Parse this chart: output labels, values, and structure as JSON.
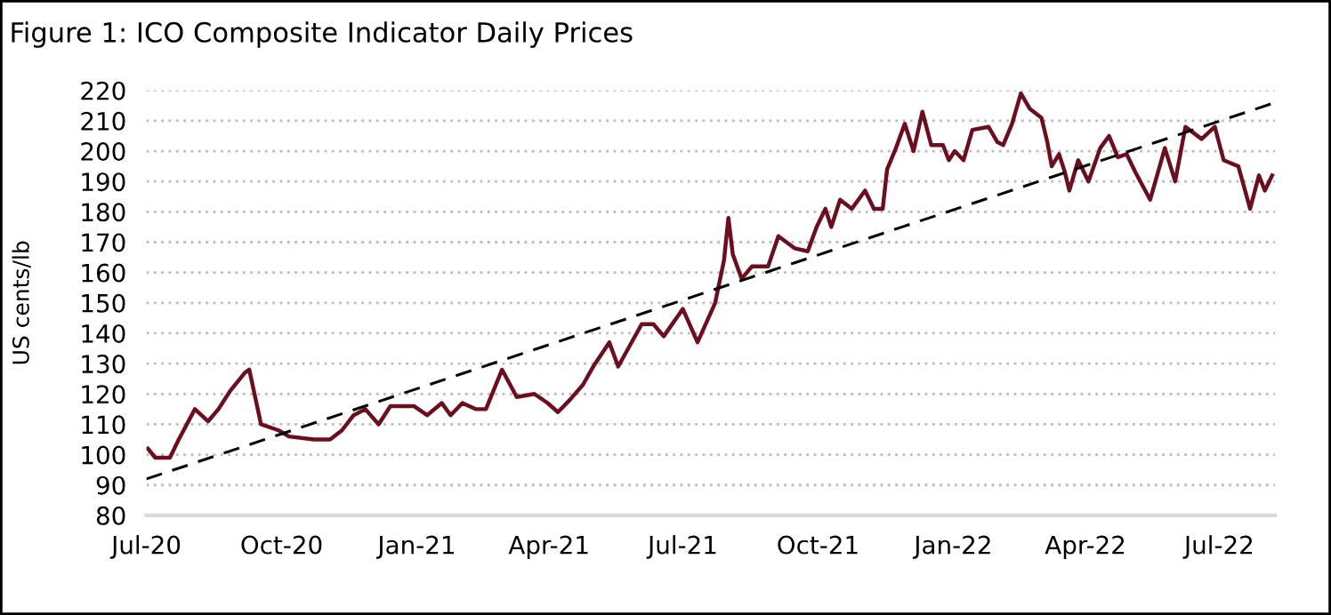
{
  "chart_data": {
    "type": "line",
    "title": "Figure 1: ICO Composite Indicator Daily Prices",
    "ylabel": "US cents/lb",
    "ylim": [
      80,
      220
    ],
    "yticks": [
      80,
      90,
      100,
      110,
      120,
      130,
      140,
      150,
      160,
      170,
      180,
      190,
      200,
      210,
      220
    ],
    "xlim": [
      "2020-07-01",
      "2022-08-08"
    ],
    "xticks": [
      {
        "value": "2020-07-01",
        "label": "Jul-20"
      },
      {
        "value": "2020-10-01",
        "label": "Oct-20"
      },
      {
        "value": "2021-01-01",
        "label": "Jan-21"
      },
      {
        "value": "2021-04-01",
        "label": "Apr-21"
      },
      {
        "value": "2021-07-01",
        "label": "Jul-21"
      },
      {
        "value": "2021-10-01",
        "label": "Oct-21"
      },
      {
        "value": "2022-01-01",
        "label": "Jan-22"
      },
      {
        "value": "2022-04-01",
        "label": "Apr-22"
      },
      {
        "value": "2022-07-01",
        "label": "Jul-22"
      }
    ],
    "grid": "y",
    "legend": false,
    "series": [
      {
        "color": "#6b0f1f",
        "line_style": "solid",
        "x": [
          "2020-07-02",
          "2020-07-07",
          "2020-07-17",
          "2020-07-23",
          "2020-08-03",
          "2020-08-12",
          "2020-08-19",
          "2020-08-27",
          "2020-09-06",
          "2020-09-09",
          "2020-09-17",
          "2020-09-29",
          "2020-10-06",
          "2020-10-23",
          "2020-11-03",
          "2020-11-11",
          "2020-11-19",
          "2020-11-27",
          "2020-12-06",
          "2020-12-14",
          "2020-12-30",
          "2021-01-08",
          "2021-01-18",
          "2021-01-24",
          "2021-02-01",
          "2021-02-10",
          "2021-02-17",
          "2021-02-28",
          "2021-03-10",
          "2021-03-22",
          "2021-03-31",
          "2021-04-07",
          "2021-04-15",
          "2021-04-24",
          "2021-05-01",
          "2021-05-12",
          "2021-05-18",
          "2021-06-03",
          "2021-06-11",
          "2021-06-18",
          "2021-07-01",
          "2021-07-11",
          "2021-07-23",
          "2021-07-29",
          "2021-08-01",
          "2021-08-04",
          "2021-08-10",
          "2021-08-17",
          "2021-08-28",
          "2021-09-04",
          "2021-09-15",
          "2021-09-24",
          "2021-09-30",
          "2021-10-06",
          "2021-10-10",
          "2021-10-16",
          "2021-10-24",
          "2021-11-02",
          "2021-11-08",
          "2021-11-14",
          "2021-11-17",
          "2021-11-23",
          "2021-11-29",
          "2021-12-05",
          "2021-12-11",
          "2021-12-17",
          "2021-12-25",
          "2021-12-29",
          "2022-01-02",
          "2022-01-08",
          "2022-01-14",
          "2022-01-25",
          "2022-01-31",
          "2022-02-04",
          "2022-02-10",
          "2022-02-16",
          "2022-02-22",
          "2022-03-02",
          "2022-03-06",
          "2022-03-09",
          "2022-03-14",
          "2022-03-18",
          "2022-03-21",
          "2022-03-27",
          "2022-04-03",
          "2022-04-11",
          "2022-04-17",
          "2022-04-23",
          "2022-04-29",
          "2022-05-05",
          "2022-05-15",
          "2022-05-25",
          "2022-06-01",
          "2022-06-08",
          "2022-06-19",
          "2022-06-28",
          "2022-07-04",
          "2022-07-14",
          "2022-07-22",
          "2022-07-28",
          "2022-08-01",
          "2022-08-06"
        ],
        "values": [
          102,
          99,
          99,
          105,
          115,
          111,
          115,
          121,
          127,
          128,
          110,
          108,
          106,
          105,
          105,
          108,
          113,
          115,
          110,
          116,
          116,
          113,
          117,
          113,
          117,
          115,
          115,
          128,
          119,
          120,
          117,
          114,
          118,
          123,
          129,
          137,
          129,
          143,
          143,
          139,
          148,
          137,
          150,
          164,
          178,
          166,
          158,
          162,
          162,
          172,
          168,
          167,
          175,
          181,
          175,
          184,
          181,
          187,
          181,
          181,
          194,
          201,
          209,
          200,
          213,
          202,
          202,
          197,
          200,
          197,
          207,
          208,
          203,
          202,
          209,
          219,
          214,
          211,
          203,
          195,
          199,
          193,
          187,
          197,
          190,
          201,
          205,
          198,
          199,
          193,
          184,
          201,
          190,
          208,
          204,
          208,
          197,
          195,
          181,
          192,
          187,
          192
        ]
      },
      {
        "color": "#000000",
        "line_style": "dashed",
        "x": [
          "2020-07-01",
          "2022-08-08"
        ],
        "values": [
          92,
          216
        ]
      }
    ]
  }
}
